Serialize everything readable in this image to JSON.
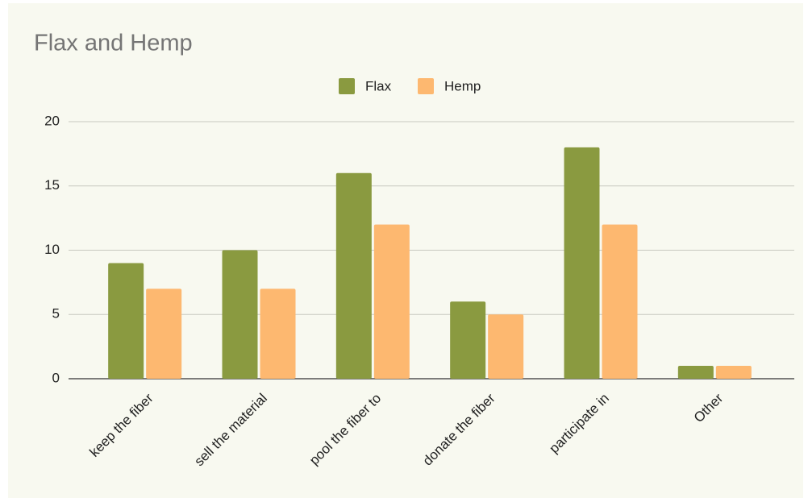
{
  "chart_data": {
    "type": "bar",
    "title": "Flax and Hemp",
    "categories": [
      "keep the fiber",
      "sell the material",
      "pool the fiber to",
      "donate the fiber",
      "participate in",
      "Other"
    ],
    "series": [
      {
        "name": "Flax",
        "color": "#8a9a40",
        "values": [
          9,
          10,
          16,
          6,
          18,
          1
        ]
      },
      {
        "name": "Hemp",
        "color": "#fdb870",
        "values": [
          7,
          7,
          12,
          5,
          12,
          1
        ]
      }
    ],
    "ylim": [
      0,
      20
    ],
    "yticks": [
      0,
      5,
      10,
      15,
      20
    ],
    "grid": true,
    "legend": "top"
  }
}
